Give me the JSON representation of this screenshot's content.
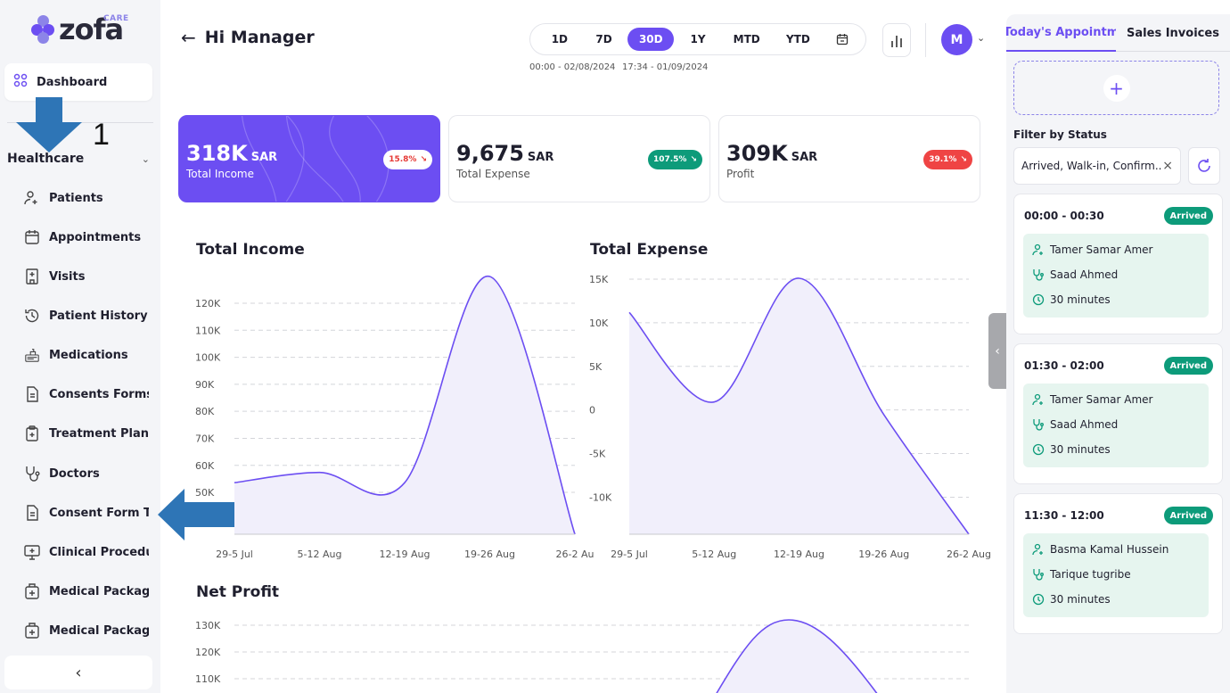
{
  "brand": {
    "name": "zofa",
    "tag": "CARE"
  },
  "sidebar": {
    "dashboard_label": "Dashboard",
    "section_label": "Healthcare",
    "annotation_number": "1",
    "items": [
      {
        "label": "Patients",
        "icon": "patient-icon"
      },
      {
        "label": "Appointments",
        "icon": "calendar-icon"
      },
      {
        "label": "Visits",
        "icon": "hospital-icon"
      },
      {
        "label": "Patient History",
        "icon": "history-icon"
      },
      {
        "label": "Medications",
        "icon": "medication-icon"
      },
      {
        "label": "Consents Forms",
        "icon": "document-icon"
      },
      {
        "label": "Treatment Plans",
        "icon": "clipboard-icon"
      },
      {
        "label": "Doctors",
        "icon": "stethoscope-icon"
      },
      {
        "label": "Consent Form Te...",
        "icon": "document-icon"
      },
      {
        "label": "Clinical Procedur...",
        "icon": "monitor-icon"
      },
      {
        "label": "Medical Package",
        "icon": "medical-bag-icon"
      },
      {
        "label": "Medical Package ...",
        "icon": "medical-bag-icon"
      }
    ],
    "collapse_glyph": "‹"
  },
  "header": {
    "greeting": "Hi Manager",
    "ranges": [
      "1D",
      "7D",
      "30D",
      "1Y",
      "MTD",
      "YTD"
    ],
    "active_range": "30D",
    "range_start": "00:00 - 02/08/2024",
    "range_end": "17:34 - 01/09/2024",
    "avatar_initial": "M"
  },
  "stats": [
    {
      "value": "318K",
      "unit": "SAR",
      "caption": "Total Income",
      "change": "15.8%"
    },
    {
      "value": "9,675",
      "unit": "SAR",
      "caption": "Total Expense",
      "change": "107.5%"
    },
    {
      "value": "309K",
      "unit": "SAR",
      "caption": "Profit",
      "change": "39.1%"
    }
  ],
  "chart_data": [
    {
      "type": "area",
      "title": "Total Income",
      "categories": [
        "29-5 Jul",
        "5-12 Aug",
        "12-19 Aug",
        "19-26 Aug",
        "26-2 Au"
      ],
      "values": [
        50000,
        54000,
        50000,
        130000,
        30000
      ],
      "yticks": [
        "120K",
        "110K",
        "100K",
        "90K",
        "80K",
        "70K",
        "60K",
        "50K"
      ],
      "ylim": [
        30000,
        130000
      ],
      "grid": true
    },
    {
      "type": "area",
      "title": "Total Expense",
      "categories": [
        "29-5 Jul",
        "5-12 Aug",
        "12-19 Aug",
        "19-26 Aug",
        "26-2 Aug"
      ],
      "values": [
        11000,
        500,
        15000,
        -1000,
        -15000
      ],
      "yticks": [
        "15K",
        "10K",
        "5K",
        "0",
        "-5K",
        "-10K"
      ],
      "ylim": [
        -15000,
        15000
      ],
      "grid": true
    },
    {
      "type": "area",
      "title": "Net Profit",
      "yticks": [
        "130K",
        "120K",
        "110K"
      ],
      "grid": true
    }
  ],
  "right_panel": {
    "tabs": [
      "Today's Appointm",
      "Sales Invoices"
    ],
    "add_glyph": "+",
    "filter_label": "Filter by Status",
    "filter_value": "Arrived, Walk-in, Confirm...",
    "appointments": [
      {
        "time": "00:00 - 00:30",
        "status": "Arrived",
        "patient": "Tamer Samar Amer",
        "doctor": "Saad Ahmed",
        "duration": "30 minutes"
      },
      {
        "time": "01:30 - 02:00",
        "status": "Arrived",
        "patient": "Tamer Samar Amer",
        "doctor": "Saad Ahmed",
        "duration": "30 minutes"
      },
      {
        "time": "11:30 - 12:00",
        "status": "Arrived",
        "patient": "Basma Kamal Hussein",
        "doctor": "Tarique tugribe",
        "duration": "30 minutes"
      }
    ]
  },
  "colors": {
    "accent": "#6c4ef2",
    "success": "#0d9b7a",
    "danger": "#ef4444",
    "annotation": "#2e75b6"
  }
}
